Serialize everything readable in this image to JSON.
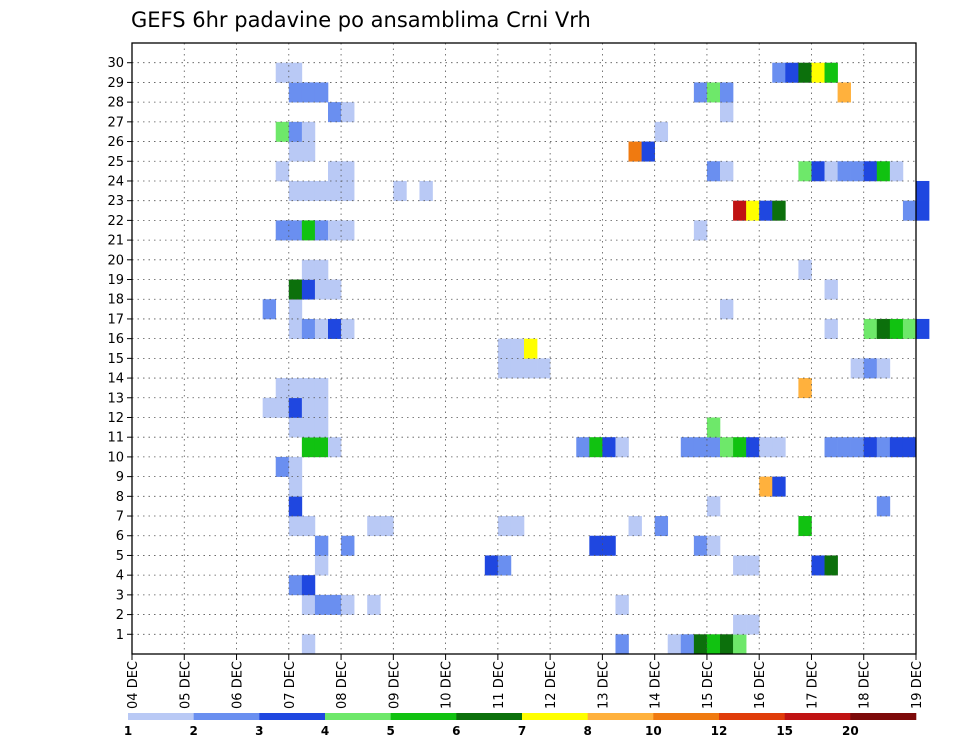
{
  "chart_data": {
    "type": "heatmap",
    "title": "GEFS 6hr padavine po ansamblima Crni Vrh",
    "xlabel": "",
    "ylabel": "",
    "x_ticks": [
      "04 DEC",
      "05 DEC",
      "06 DEC",
      "07 DEC",
      "08 DEC",
      "09 DEC",
      "10 DEC",
      "11 DEC",
      "12 DEC",
      "13 DEC",
      "14 DEC",
      "15 DEC",
      "16 DEC",
      "17 DEC",
      "18 DEC",
      "19 DEC"
    ],
    "x_range": [
      "04 DEC 00z",
      "19 DEC 00z"
    ],
    "time_step_hours": 6,
    "y_ticks": [
      1,
      2,
      3,
      4,
      5,
      6,
      7,
      8,
      9,
      10,
      11,
      12,
      13,
      14,
      15,
      16,
      17,
      18,
      19,
      20,
      21,
      22,
      23,
      24,
      25,
      26,
      27,
      28,
      29,
      30
    ],
    "y_range": [
      0,
      30
    ],
    "grid": true,
    "colorbar": {
      "labels": [
        "1",
        "2",
        "3",
        "4",
        "5",
        "6",
        "7",
        "8",
        "10",
        "12",
        "15",
        "20",
        ""
      ],
      "colors": [
        "#b9c9f5",
        "#6a8ff0",
        "#1f47e0",
        "#6ee86a",
        "#11c211",
        "#0c700c",
        "#ffff00",
        "#ffb13d",
        "#f07a10",
        "#e03c0a",
        "#c01313",
        "#7d0a0a"
      ]
    },
    "cells": [
      {
        "member": 0,
        "step": 13,
        "level": 1
      },
      {
        "member": 0,
        "step": 37,
        "level": 2
      },
      {
        "member": 0,
        "step": 41,
        "level": 1
      },
      {
        "member": 0,
        "step": 42,
        "level": 2
      },
      {
        "member": 0,
        "step": 43,
        "level": 6
      },
      {
        "member": 0,
        "step": 44,
        "level": 5
      },
      {
        "member": 0,
        "step": 45,
        "level": 6
      },
      {
        "member": 0,
        "step": 46,
        "level": 4
      },
      {
        "member": 1,
        "step": 46,
        "level": 1
      },
      {
        "member": 1,
        "step": 47,
        "level": 1
      },
      {
        "member": 2,
        "step": 13,
        "level": 1
      },
      {
        "member": 2,
        "step": 14,
        "level": 2
      },
      {
        "member": 2,
        "step": 15,
        "level": 2
      },
      {
        "member": 2,
        "step": 16,
        "level": 1
      },
      {
        "member": 2,
        "step": 18,
        "level": 1
      },
      {
        "member": 2,
        "step": 37,
        "level": 1
      },
      {
        "member": 3,
        "step": 12,
        "level": 2
      },
      {
        "member": 3,
        "step": 13,
        "level": 3
      },
      {
        "member": 4,
        "step": 14,
        "level": 1
      },
      {
        "member": 4,
        "step": 27,
        "level": 3
      },
      {
        "member": 4,
        "step": 28,
        "level": 2
      },
      {
        "member": 4,
        "step": 46,
        "level": 1
      },
      {
        "member": 4,
        "step": 47,
        "level": 1
      },
      {
        "member": 4,
        "step": 52,
        "level": 3
      },
      {
        "member": 4,
        "step": 53,
        "level": 6
      },
      {
        "member": 5,
        "step": 14,
        "level": 2
      },
      {
        "member": 5,
        "step": 16,
        "level": 2
      },
      {
        "member": 5,
        "step": 35,
        "level": 3
      },
      {
        "member": 5,
        "step": 36,
        "level": 3
      },
      {
        "member": 5,
        "step": 43,
        "level": 2
      },
      {
        "member": 5,
        "step": 44,
        "level": 1
      },
      {
        "member": 6,
        "step": 12,
        "level": 1
      },
      {
        "member": 6,
        "step": 13,
        "level": 1
      },
      {
        "member": 6,
        "step": 18,
        "level": 1
      },
      {
        "member": 6,
        "step": 19,
        "level": 1
      },
      {
        "member": 6,
        "step": 28,
        "level": 1
      },
      {
        "member": 6,
        "step": 29,
        "level": 1
      },
      {
        "member": 6,
        "step": 38,
        "level": 1
      },
      {
        "member": 6,
        "step": 40,
        "level": 2
      },
      {
        "member": 6,
        "step": 51,
        "level": 5
      },
      {
        "member": 7,
        "step": 12,
        "level": 3
      },
      {
        "member": 7,
        "step": 44,
        "level": 1
      },
      {
        "member": 7,
        "step": 57,
        "level": 2
      },
      {
        "member": 8,
        "step": 12,
        "level": 1
      },
      {
        "member": 8,
        "step": 48,
        "level": 8
      },
      {
        "member": 8,
        "step": 49,
        "level": 3
      },
      {
        "member": 9,
        "step": 11,
        "level": 2
      },
      {
        "member": 9,
        "step": 12,
        "level": 1
      },
      {
        "member": 10,
        "step": 13,
        "level": 5
      },
      {
        "member": 10,
        "step": 14,
        "level": 5
      },
      {
        "member": 10,
        "step": 15,
        "level": 1
      },
      {
        "member": 10,
        "step": 34,
        "level": 2
      },
      {
        "member": 10,
        "step": 35,
        "level": 5
      },
      {
        "member": 10,
        "step": 36,
        "level": 3
      },
      {
        "member": 10,
        "step": 37,
        "level": 1
      },
      {
        "member": 10,
        "step": 42,
        "level": 2
      },
      {
        "member": 10,
        "step": 43,
        "level": 2
      },
      {
        "member": 10,
        "step": 44,
        "level": 2
      },
      {
        "member": 10,
        "step": 45,
        "level": 4
      },
      {
        "member": 10,
        "step": 46,
        "level": 5
      },
      {
        "member": 10,
        "step": 47,
        "level": 3
      },
      {
        "member": 10,
        "step": 48,
        "level": 1
      },
      {
        "member": 10,
        "step": 49,
        "level": 1
      },
      {
        "member": 10,
        "step": 53,
        "level": 2
      },
      {
        "member": 10,
        "step": 54,
        "level": 2
      },
      {
        "member": 10,
        "step": 55,
        "level": 2
      },
      {
        "member": 10,
        "step": 56,
        "level": 3
      },
      {
        "member": 10,
        "step": 57,
        "level": 2
      },
      {
        "member": 10,
        "step": 58,
        "level": 3
      },
      {
        "member": 10,
        "step": 59,
        "level": 3
      },
      {
        "member": 11,
        "step": 12,
        "level": 1
      },
      {
        "member": 11,
        "step": 13,
        "level": 1
      },
      {
        "member": 11,
        "step": 14,
        "level": 1
      },
      {
        "member": 11,
        "step": 44,
        "level": 4
      },
      {
        "member": 12,
        "step": 10,
        "level": 1
      },
      {
        "member": 12,
        "step": 11,
        "level": 1
      },
      {
        "member": 12,
        "step": 12,
        "level": 3
      },
      {
        "member": 12,
        "step": 13,
        "level": 1
      },
      {
        "member": 12,
        "step": 14,
        "level": 1
      },
      {
        "member": 13,
        "step": 11,
        "level": 1
      },
      {
        "member": 13,
        "step": 12,
        "level": 1
      },
      {
        "member": 13,
        "step": 13,
        "level": 1
      },
      {
        "member": 13,
        "step": 14,
        "level": 1
      },
      {
        "member": 13,
        "step": 51,
        "level": 8
      },
      {
        "member": 14,
        "step": 28,
        "level": 1
      },
      {
        "member": 14,
        "step": 29,
        "level": 1
      },
      {
        "member": 14,
        "step": 30,
        "level": 1
      },
      {
        "member": 14,
        "step": 31,
        "level": 1
      },
      {
        "member": 14,
        "step": 55,
        "level": 1
      },
      {
        "member": 14,
        "step": 56,
        "level": 2
      },
      {
        "member": 14,
        "step": 57,
        "level": 1
      },
      {
        "member": 15,
        "step": 28,
        "level": 1
      },
      {
        "member": 15,
        "step": 29,
        "level": 1
      },
      {
        "member": 15,
        "step": 30,
        "level": 7
      },
      {
        "member": 16,
        "step": 12,
        "level": 1
      },
      {
        "member": 16,
        "step": 13,
        "level": 2
      },
      {
        "member": 16,
        "step": 14,
        "level": 1
      },
      {
        "member": 16,
        "step": 15,
        "level": 3
      },
      {
        "member": 16,
        "step": 16,
        "level": 1
      },
      {
        "member": 16,
        "step": 53,
        "level": 1
      },
      {
        "member": 16,
        "step": 56,
        "level": 4
      },
      {
        "member": 16,
        "step": 57,
        "level": 6
      },
      {
        "member": 16,
        "step": 58,
        "level": 5
      },
      {
        "member": 16,
        "step": 59,
        "level": 4
      },
      {
        "member": 16,
        "step": 60,
        "level": 3
      },
      {
        "member": 17,
        "step": 10,
        "level": 2
      },
      {
        "member": 17,
        "step": 12,
        "level": 1
      },
      {
        "member": 17,
        "step": 45,
        "level": 1
      },
      {
        "member": 18,
        "step": 12,
        "level": 6
      },
      {
        "member": 18,
        "step": 13,
        "level": 3
      },
      {
        "member": 18,
        "step": 14,
        "level": 1
      },
      {
        "member": 18,
        "step": 15,
        "level": 1
      },
      {
        "member": 18,
        "step": 53,
        "level": 1
      },
      {
        "member": 19,
        "step": 13,
        "level": 1
      },
      {
        "member": 19,
        "step": 14,
        "level": 1
      },
      {
        "member": 19,
        "step": 51,
        "level": 1
      },
      {
        "member": 21,
        "step": 11,
        "level": 2
      },
      {
        "member": 21,
        "step": 12,
        "level": 2
      },
      {
        "member": 21,
        "step": 13,
        "level": 5
      },
      {
        "member": 21,
        "step": 14,
        "level": 2
      },
      {
        "member": 21,
        "step": 15,
        "level": 1
      },
      {
        "member": 21,
        "step": 16,
        "level": 1
      },
      {
        "member": 21,
        "step": 43,
        "level": 1
      },
      {
        "member": 22,
        "step": 46,
        "level": 11
      },
      {
        "member": 22,
        "step": 47,
        "level": 7
      },
      {
        "member": 22,
        "step": 48,
        "level": 3
      },
      {
        "member": 22,
        "step": 49,
        "level": 6
      },
      {
        "member": 22,
        "step": 59,
        "level": 2
      },
      {
        "member": 22,
        "step": 60,
        "level": 3
      },
      {
        "member": 23,
        "step": 12,
        "level": 1
      },
      {
        "member": 23,
        "step": 13,
        "level": 1
      },
      {
        "member": 23,
        "step": 14,
        "level": 1
      },
      {
        "member": 23,
        "step": 15,
        "level": 1
      },
      {
        "member": 23,
        "step": 16,
        "level": 1
      },
      {
        "member": 23,
        "step": 20,
        "level": 1
      },
      {
        "member": 23,
        "step": 22,
        "level": 1
      },
      {
        "member": 23,
        "step": 60,
        "level": 3
      },
      {
        "member": 24,
        "step": 11,
        "level": 1
      },
      {
        "member": 24,
        "step": 15,
        "level": 1
      },
      {
        "member": 24,
        "step": 16,
        "level": 1
      },
      {
        "member": 24,
        "step": 44,
        "level": 2
      },
      {
        "member": 24,
        "step": 45,
        "level": 1
      },
      {
        "member": 24,
        "step": 51,
        "level": 4
      },
      {
        "member": 24,
        "step": 52,
        "level": 3
      },
      {
        "member": 24,
        "step": 53,
        "level": 1
      },
      {
        "member": 24,
        "step": 54,
        "level": 2
      },
      {
        "member": 24,
        "step": 55,
        "level": 2
      },
      {
        "member": 24,
        "step": 56,
        "level": 3
      },
      {
        "member": 24,
        "step": 57,
        "level": 5
      },
      {
        "member": 24,
        "step": 58,
        "level": 1
      },
      {
        "member": 25,
        "step": 12,
        "level": 1
      },
      {
        "member": 25,
        "step": 13,
        "level": 1
      },
      {
        "member": 25,
        "step": 38,
        "level": 9
      },
      {
        "member": 25,
        "step": 39,
        "level": 3
      },
      {
        "member": 26,
        "step": 11,
        "level": 4
      },
      {
        "member": 26,
        "step": 12,
        "level": 2
      },
      {
        "member": 26,
        "step": 13,
        "level": 1
      },
      {
        "member": 26,
        "step": 40,
        "level": 1
      },
      {
        "member": 27,
        "step": 15,
        "level": 2
      },
      {
        "member": 27,
        "step": 16,
        "level": 1
      },
      {
        "member": 27,
        "step": 45,
        "level": 1
      },
      {
        "member": 28,
        "step": 12,
        "level": 2
      },
      {
        "member": 28,
        "step": 13,
        "level": 2
      },
      {
        "member": 28,
        "step": 14,
        "level": 2
      },
      {
        "member": 28,
        "step": 43,
        "level": 2
      },
      {
        "member": 28,
        "step": 44,
        "level": 4
      },
      {
        "member": 28,
        "step": 45,
        "level": 2
      },
      {
        "member": 28,
        "step": 54,
        "level": 8
      },
      {
        "member": 29,
        "step": 11,
        "level": 1
      },
      {
        "member": 29,
        "step": 12,
        "level": 1
      },
      {
        "member": 29,
        "step": 49,
        "level": 2
      },
      {
        "member": 29,
        "step": 50,
        "level": 3
      },
      {
        "member": 29,
        "step": 51,
        "level": 6
      },
      {
        "member": 29,
        "step": 52,
        "level": 7
      },
      {
        "member": 29,
        "step": 53,
        "level": 5
      }
    ]
  }
}
